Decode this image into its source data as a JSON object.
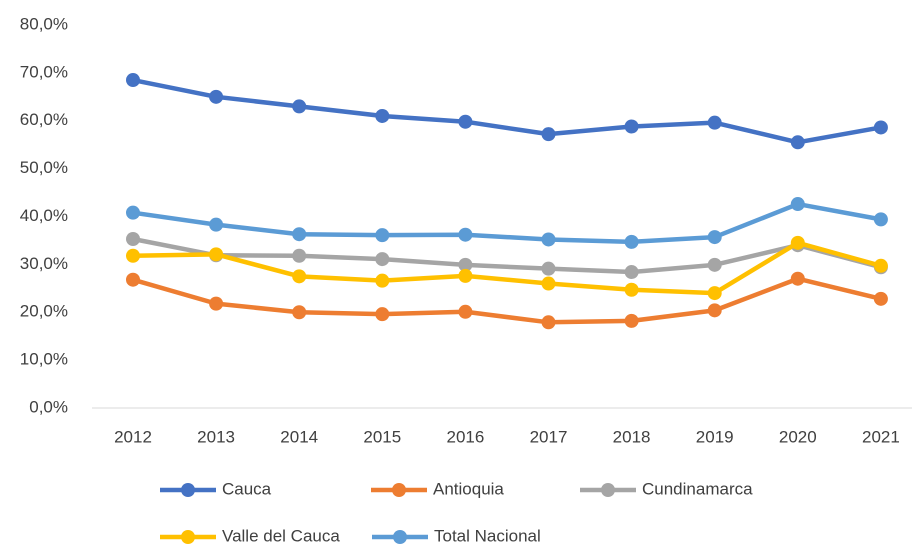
{
  "chart_data": {
    "type": "line",
    "categories": [
      "2012",
      "2013",
      "2014",
      "2015",
      "2016",
      "2017",
      "2018",
      "2019",
      "2020",
      "2021"
    ],
    "series": [
      {
        "name": "Cauca",
        "color": "#4472c4",
        "values": [
          68.5,
          65.0,
          63.0,
          61.0,
          59.8,
          57.2,
          58.8,
          59.6,
          55.5,
          58.6
        ]
      },
      {
        "name": "Antioquia",
        "color": "#ed7d31",
        "values": [
          26.8,
          21.8,
          20.0,
          19.6,
          20.1,
          17.9,
          18.2,
          20.4,
          27.0,
          22.8
        ]
      },
      {
        "name": "Cundinamarca",
        "color": "#a5a5a5",
        "values": [
          35.3,
          31.9,
          31.8,
          31.1,
          29.9,
          29.1,
          28.4,
          29.9,
          34.0,
          29.4
        ]
      },
      {
        "name": "Valle del Cauca",
        "color": "#ffc000",
        "values": [
          31.8,
          32.1,
          27.5,
          26.6,
          27.6,
          26.0,
          24.7,
          24.0,
          34.5,
          29.7
        ]
      },
      {
        "name": "Total Nacional",
        "color": "#5b9bd5",
        "values": [
          40.8,
          38.3,
          36.3,
          36.1,
          36.2,
          35.2,
          34.7,
          35.7,
          42.6,
          39.4
        ]
      }
    ],
    "ylim": [
      0,
      80
    ],
    "yticks": [
      {
        "value": 0,
        "label": "0,0%"
      },
      {
        "value": 10,
        "label": "10,0%"
      },
      {
        "value": 20,
        "label": "20,0%"
      },
      {
        "value": 30,
        "label": "30,0%"
      },
      {
        "value": 40,
        "label": "40,0%"
      },
      {
        "value": 50,
        "label": "50,0%"
      },
      {
        "value": 60,
        "label": "60,0%"
      },
      {
        "value": 70,
        "label": "70,0%"
      },
      {
        "value": 80,
        "label": "80,0%"
      }
    ],
    "grid": false
  }
}
